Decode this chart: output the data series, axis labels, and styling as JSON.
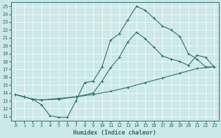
{
  "xlabel": "Humidex (Indice chaleur)",
  "bg_color": "#cce8e8",
  "grid_color": "#ffffff",
  "line_color": "#2d6e6e",
  "line1_x": [
    0,
    1,
    2,
    3,
    4,
    5,
    6,
    7,
    8,
    9,
    10,
    11,
    12,
    13,
    14,
    15,
    16,
    17,
    18,
    19,
    20,
    21,
    22,
    23
  ],
  "line1_y": [
    13.8,
    13.5,
    13.2,
    12.5,
    11.1,
    10.9,
    10.9,
    13.0,
    15.3,
    15.5,
    17.3,
    20.7,
    21.5,
    23.3,
    25.0,
    24.5,
    23.5,
    22.5,
    22.0,
    21.2,
    19.0,
    18.3,
    17.3,
    17.3
  ],
  "line2_x": [
    0,
    1,
    2,
    3,
    5,
    7,
    9,
    10,
    11,
    12,
    13,
    14,
    15,
    16,
    17,
    18,
    19,
    20,
    21,
    22,
    23
  ],
  "line2_y": [
    13.8,
    13.5,
    13.2,
    13.1,
    13.2,
    13.5,
    14.0,
    15.5,
    17.2,
    18.5,
    20.5,
    21.7,
    20.9,
    19.8,
    18.7,
    18.3,
    18.0,
    17.5,
    18.8,
    18.5,
    17.3
  ],
  "line3_x": [
    0,
    1,
    2,
    3,
    5,
    7,
    9,
    11,
    13,
    15,
    17,
    19,
    21,
    23
  ],
  "line3_y": [
    13.8,
    13.5,
    13.2,
    13.1,
    13.3,
    13.5,
    13.8,
    14.2,
    14.7,
    15.3,
    15.9,
    16.5,
    17.1,
    17.3
  ],
  "xlim": [
    -0.5,
    23.5
  ],
  "ylim": [
    10.5,
    25.5
  ],
  "xticks": [
    0,
    1,
    2,
    3,
    4,
    5,
    6,
    7,
    8,
    9,
    10,
    11,
    12,
    13,
    14,
    15,
    16,
    17,
    18,
    19,
    20,
    21,
    22,
    23
  ],
  "yticks": [
    11,
    12,
    13,
    14,
    15,
    16,
    17,
    18,
    19,
    20,
    21,
    22,
    23,
    24,
    25
  ],
  "tick_fontsize": 5,
  "xlabel_fontsize": 6,
  "lw": 0.8,
  "ms": 2.5,
  "mew": 0.7
}
